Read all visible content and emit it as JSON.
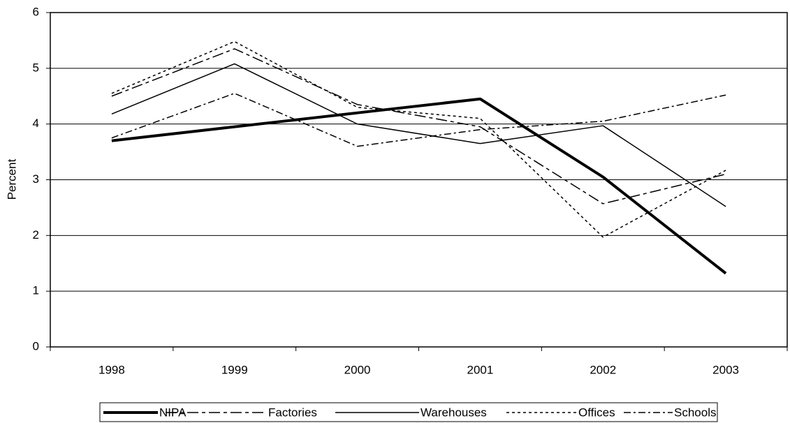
{
  "chart_data": {
    "type": "line",
    "ylabel": "Percent",
    "categories": [
      "1998",
      "1999",
      "2000",
      "2001",
      "2002",
      "2003"
    ],
    "series": [
      {
        "name": "NIPA",
        "color": "#000000",
        "values": [
          3.7,
          3.95,
          4.2,
          4.45,
          3.05,
          1.32
        ]
      },
      {
        "name": "Factories",
        "color": "#000000",
        "values": [
          4.5,
          5.35,
          4.35,
          3.95,
          2.57,
          3.1
        ]
      },
      {
        "name": "Warehouses",
        "color": "#000000",
        "values": [
          4.18,
          5.08,
          4.0,
          3.65,
          3.97,
          2.52
        ]
      },
      {
        "name": "Offices",
        "color": "#000000",
        "values": [
          4.55,
          5.48,
          4.3,
          4.1,
          1.97,
          3.17
        ]
      },
      {
        "name": "Schools",
        "color": "#000000",
        "values": [
          3.75,
          4.55,
          3.6,
          3.9,
          4.05,
          4.52
        ]
      }
    ],
    "ylim": [
      0,
      6
    ],
    "yticks": [
      0,
      1,
      2,
      3,
      4,
      5,
      6
    ],
    "grid": true,
    "legend": "bottom"
  }
}
